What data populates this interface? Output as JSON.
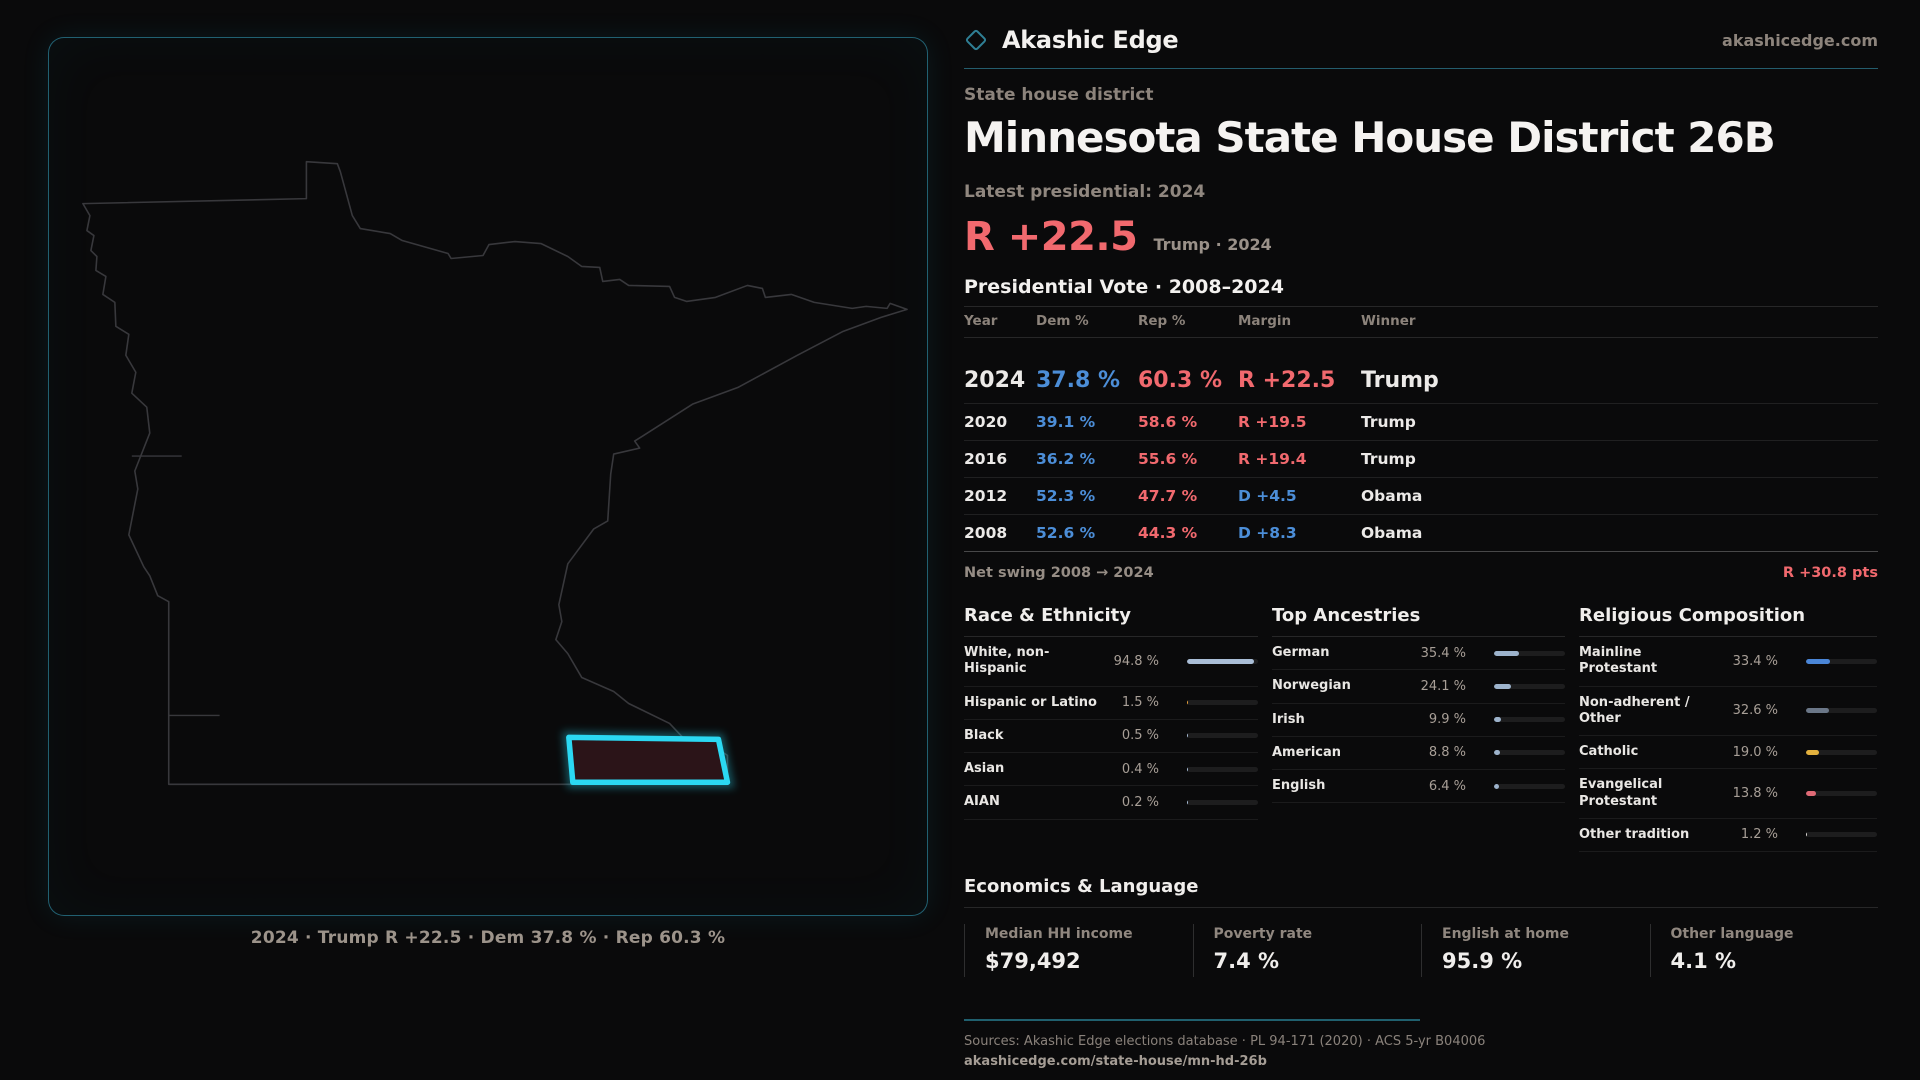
{
  "brand": {
    "name": "Akashic Edge",
    "domain": "akashicedge.com",
    "logo_icon": "diamond-icon"
  },
  "header": {
    "kicker": "State house district",
    "title": "Minnesota State House District 26B",
    "latest_label": "Latest presidential: 2024",
    "margin_value": "R +22.5",
    "margin_context": "Trump · 2024"
  },
  "vote_table": {
    "title": "Presidential Vote · 2008–2024",
    "columns": [
      "Year",
      "Dem %",
      "Rep %",
      "Margin",
      "Winner"
    ],
    "rows": [
      {
        "year": "2024",
        "dem": "37.8 %",
        "rep": "60.3 %",
        "margin": "R +22.5",
        "margin_side": "R",
        "winner": "Trump",
        "latest": true
      },
      {
        "year": "2020",
        "dem": "39.1 %",
        "rep": "58.6 %",
        "margin": "R +19.5",
        "margin_side": "R",
        "winner": "Trump",
        "latest": false
      },
      {
        "year": "2016",
        "dem": "36.2 %",
        "rep": "55.6 %",
        "margin": "R +19.4",
        "margin_side": "R",
        "winner": "Trump",
        "latest": false
      },
      {
        "year": "2012",
        "dem": "52.3 %",
        "rep": "47.7 %",
        "margin": "D +4.5",
        "margin_side": "D",
        "winner": "Obama",
        "latest": false
      },
      {
        "year": "2008",
        "dem": "52.6 %",
        "rep": "44.3 %",
        "margin": "D +8.3",
        "margin_side": "D",
        "winner": "Obama",
        "latest": false
      }
    ],
    "net_swing_label": "Net swing 2008 → 2024",
    "net_swing_value": "R +30.8 pts"
  },
  "demographics": {
    "sections": [
      {
        "id": "race",
        "title": "Race & Ethnicity",
        "rows": [
          {
            "label": "White, non-\nHispanic",
            "value": "94.8 %",
            "pct": 94.8,
            "color": "#a9bdd6"
          },
          {
            "label": "Hispanic or Latino",
            "value": "1.5 %",
            "pct": 1.5,
            "color": "#e8a13c"
          },
          {
            "label": "Black",
            "value": "0.5 %",
            "pct": 0.5,
            "color": "#a9bdd6"
          },
          {
            "label": "Asian",
            "value": "0.4 %",
            "pct": 0.4,
            "color": "#a9bdd6"
          },
          {
            "label": "AIAN",
            "value": "0.2 %",
            "pct": 0.2,
            "color": "#a9bdd6"
          }
        ]
      },
      {
        "id": "ancestries",
        "title": "Top Ancestries",
        "rows": [
          {
            "label": "German",
            "value": "35.4 %",
            "pct": 35.4,
            "color": "#9db3cc"
          },
          {
            "label": "Norwegian",
            "value": "24.1 %",
            "pct": 24.1,
            "color": "#9db3cc"
          },
          {
            "label": "Irish",
            "value": "9.9 %",
            "pct": 9.9,
            "color": "#9db3cc"
          },
          {
            "label": "American",
            "value": "8.8 %",
            "pct": 8.8,
            "color": "#9db3cc"
          },
          {
            "label": "English",
            "value": "6.4 %",
            "pct": 6.4,
            "color": "#9db3cc"
          }
        ]
      },
      {
        "id": "religion",
        "title": "Religious Composition",
        "rows": [
          {
            "label": "Mainline Protestant",
            "value": "33.4 %",
            "pct": 33.4,
            "color": "#4a86d8"
          },
          {
            "label": "Non-adherent /\nOther",
            "value": "32.6 %",
            "pct": 32.6,
            "color": "#6b7788"
          },
          {
            "label": "Catholic",
            "value": "19.0 %",
            "pct": 19.0,
            "color": "#e3b13e"
          },
          {
            "label": "Evangelical\nProtestant",
            "value": "13.8 %",
            "pct": 13.8,
            "color": "#e06a76"
          },
          {
            "label": "Other tradition",
            "value": "1.2 %",
            "pct": 1.2,
            "color": "#d8d6d2"
          }
        ]
      }
    ]
  },
  "economics": {
    "title": "Economics & Language",
    "stats": [
      {
        "label": "Median HH income",
        "value": "$79,492"
      },
      {
        "label": "Poverty rate",
        "value": "7.4 %"
      },
      {
        "label": "English at home",
        "value": "95.9 %"
      },
      {
        "label": "Other language",
        "value": "4.1 %"
      }
    ]
  },
  "map": {
    "caption": "2024 · Trump R +22.5 · Dem 37.8 % · Rep 60.3 %",
    "state": "Minnesota",
    "district_color": "#2bd8f2",
    "district_fill": "#2b1418"
  },
  "footer": {
    "sources": "Sources: Akashic Edge elections database · PL 94-171 (2020) · ACS 5-yr B04006",
    "permalink": "akashicedge.com/state-house/mn-hd-26b"
  },
  "colors": {
    "accent_red": "#f1696e",
    "accent_blue": "#4c8ed8",
    "accent_cyan": "#2bd8f2",
    "muted": "#8d847c"
  },
  "chart_data": [
    {
      "type": "table",
      "title": "Presidential Vote · 2008–2024",
      "columns": [
        "Year",
        "Dem %",
        "Rep %",
        "Margin",
        "Winner"
      ],
      "rows": [
        [
          "2024",
          37.8,
          60.3,
          "R +22.5",
          "Trump"
        ],
        [
          "2020",
          39.1,
          58.6,
          "R +19.5",
          "Trump"
        ],
        [
          "2016",
          36.2,
          55.6,
          "R +19.4",
          "Trump"
        ],
        [
          "2012",
          52.3,
          47.7,
          "D +4.5",
          "Obama"
        ],
        [
          "2008",
          52.6,
          44.3,
          "D +8.3",
          "Obama"
        ]
      ],
      "net_swing": "R +30.8 pts"
    },
    {
      "type": "bar",
      "title": "Race & Ethnicity",
      "categories": [
        "White, non-Hispanic",
        "Hispanic or Latino",
        "Black",
        "Asian",
        "AIAN"
      ],
      "values": [
        94.8,
        1.5,
        0.5,
        0.4,
        0.2
      ],
      "xlabel": "",
      "ylabel": "%",
      "ylim": [
        0,
        100
      ]
    },
    {
      "type": "bar",
      "title": "Top Ancestries",
      "categories": [
        "German",
        "Norwegian",
        "Irish",
        "American",
        "English"
      ],
      "values": [
        35.4,
        24.1,
        9.9,
        8.8,
        6.4
      ],
      "xlabel": "",
      "ylabel": "%",
      "ylim": [
        0,
        100
      ]
    },
    {
      "type": "bar",
      "title": "Religious Composition",
      "categories": [
        "Mainline Protestant",
        "Non-adherent / Other",
        "Catholic",
        "Evangelical Protestant",
        "Other tradition"
      ],
      "values": [
        33.4,
        32.6,
        19.0,
        13.8,
        1.2
      ],
      "xlabel": "",
      "ylabel": "%",
      "ylim": [
        0,
        100
      ]
    }
  ]
}
